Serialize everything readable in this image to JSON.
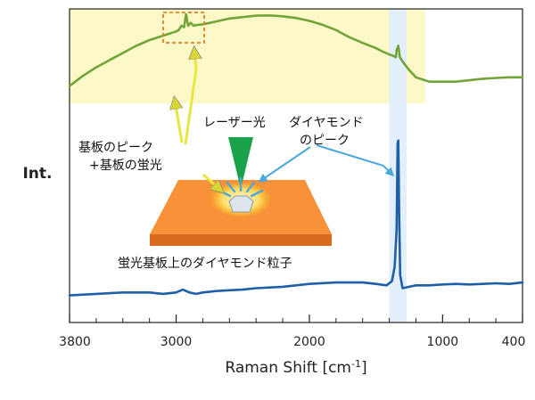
{
  "chart_data": {
    "type": "line",
    "title": "",
    "xlabel_main": "Raman Shift [cm",
    "xlabel_sup": "-1",
    "xlabel_end": "]",
    "ylabel": "Int.",
    "xlim": [
      3800,
      400
    ],
    "x_reversed": true,
    "ylim": [
      0,
      1
    ],
    "grid": false,
    "x_tick_labels": [
      "3800",
      "3000",
      "2000",
      "1000",
      "400"
    ],
    "x_tick_values": [
      3800,
      3000,
      2000,
      1000,
      400
    ],
    "x_minor_ticks": [
      3600,
      3400,
      3200,
      2800,
      2600,
      2400,
      2200,
      1800,
      1600,
      1400,
      1200,
      800,
      600
    ],
    "highlight_regions": [
      {
        "name": "fluorescence-region",
        "x_from": 3800,
        "x_to": 1130,
        "color": "#fdf8c8"
      },
      {
        "name": "diamond-peak-band",
        "x_from": 1400,
        "x_to": 1270,
        "color": "#e3f0fb"
      }
    ],
    "series": [
      {
        "color": "#72a43a",
        "x": [
          3800,
          3700,
          3600,
          3500,
          3400,
          3300,
          3200,
          3100,
          3000,
          2980,
          2960,
          2940,
          2925,
          2910,
          2890,
          2870,
          2850,
          2800,
          2700,
          2600,
          2500,
          2400,
          2300,
          2200,
          2100,
          2000,
          1900,
          1800,
          1700,
          1600,
          1500,
          1450,
          1400,
          1370,
          1350,
          1345,
          1332,
          1320,
          1300,
          1250,
          1200,
          1100,
          1000,
          900,
          800,
          700,
          600,
          500,
          400
        ],
        "y": [
          0.75,
          0.785,
          0.815,
          0.84,
          0.865,
          0.89,
          0.91,
          0.925,
          0.94,
          0.945,
          0.96,
          0.955,
          1.0,
          0.96,
          0.97,
          0.96,
          0.962,
          0.965,
          0.975,
          0.985,
          0.99,
          0.995,
          0.996,
          0.993,
          0.987,
          0.977,
          0.963,
          0.945,
          0.92,
          0.9,
          0.882,
          0.87,
          0.86,
          0.855,
          0.85,
          0.875,
          0.89,
          0.85,
          0.835,
          0.805,
          0.78,
          0.765,
          0.765,
          0.765,
          0.77,
          0.775,
          0.778,
          0.78,
          0.78
        ]
      },
      {
        "color": "#1f5fa8",
        "x": [
          3800,
          3600,
          3400,
          3200,
          3100,
          3000,
          2950,
          2900,
          2850,
          2800,
          2700,
          2600,
          2500,
          2400,
          2200,
          2000,
          1800,
          1600,
          1500,
          1420,
          1380,
          1360,
          1345,
          1338,
          1332,
          1326,
          1318,
          1300,
          1250,
          1200,
          1100,
          1000,
          900,
          800,
          700,
          600,
          500,
          400
        ],
        "y": [
          0.02,
          0.025,
          0.03,
          0.03,
          0.025,
          0.03,
          0.04,
          0.03,
          0.025,
          0.03,
          0.035,
          0.038,
          0.04,
          0.045,
          0.05,
          0.06,
          0.065,
          0.065,
          0.06,
          0.055,
          0.07,
          0.12,
          0.25,
          0.55,
          0.56,
          0.32,
          0.09,
          0.045,
          0.05,
          0.055,
          0.055,
          0.058,
          0.06,
          0.058,
          0.06,
          0.062,
          0.06,
          0.065
        ]
      }
    ],
    "annotations": {
      "substrate_line1": "基板のピーク",
      "substrate_line2": "+基板の蛍光",
      "laser": "レーザー光",
      "diamond_line1": "ダイヤモンド",
      "diamond_line2": "のピーク",
      "particle": "蛍光基板上のダイヤモンド粒子"
    },
    "colors": {
      "green": "#72a43a",
      "blue": "#1f5fa8",
      "highlight_yellow": "#fdf8c8",
      "highlight_blue": "#e3f0fb",
      "substrate": "#f7923a",
      "box": "#e0811f",
      "arrow_yellow": "#e8e640",
      "arrow_blue": "#4aa8dc",
      "laser": "#1aa24a"
    }
  }
}
